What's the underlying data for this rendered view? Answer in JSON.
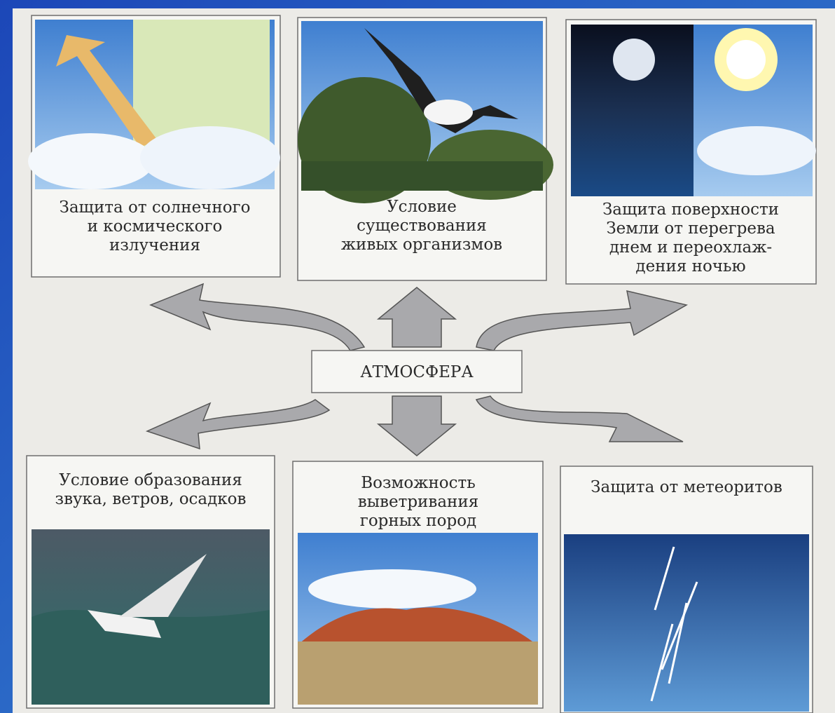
{
  "center": {
    "label": "АТМОСФЕРА"
  },
  "nodes": [
    {
      "lines": [
        "Защита от солнечного",
        "и космического",
        "излучения"
      ]
    },
    {
      "lines": [
        "Условие",
        "существования",
        "живых организмов"
      ]
    },
    {
      "lines": [
        "Защита поверхности",
        "Земли от перегрева",
        "днем и переохлаж-",
        "дения ночью"
      ]
    },
    {
      "lines": [
        "Условие образования",
        "звука, ветров, осадков"
      ]
    },
    {
      "lines": [
        "Возможность",
        "выветривания",
        "горных пород"
      ]
    },
    {
      "lines": [
        "Защита от метеоритов"
      ]
    }
  ]
}
